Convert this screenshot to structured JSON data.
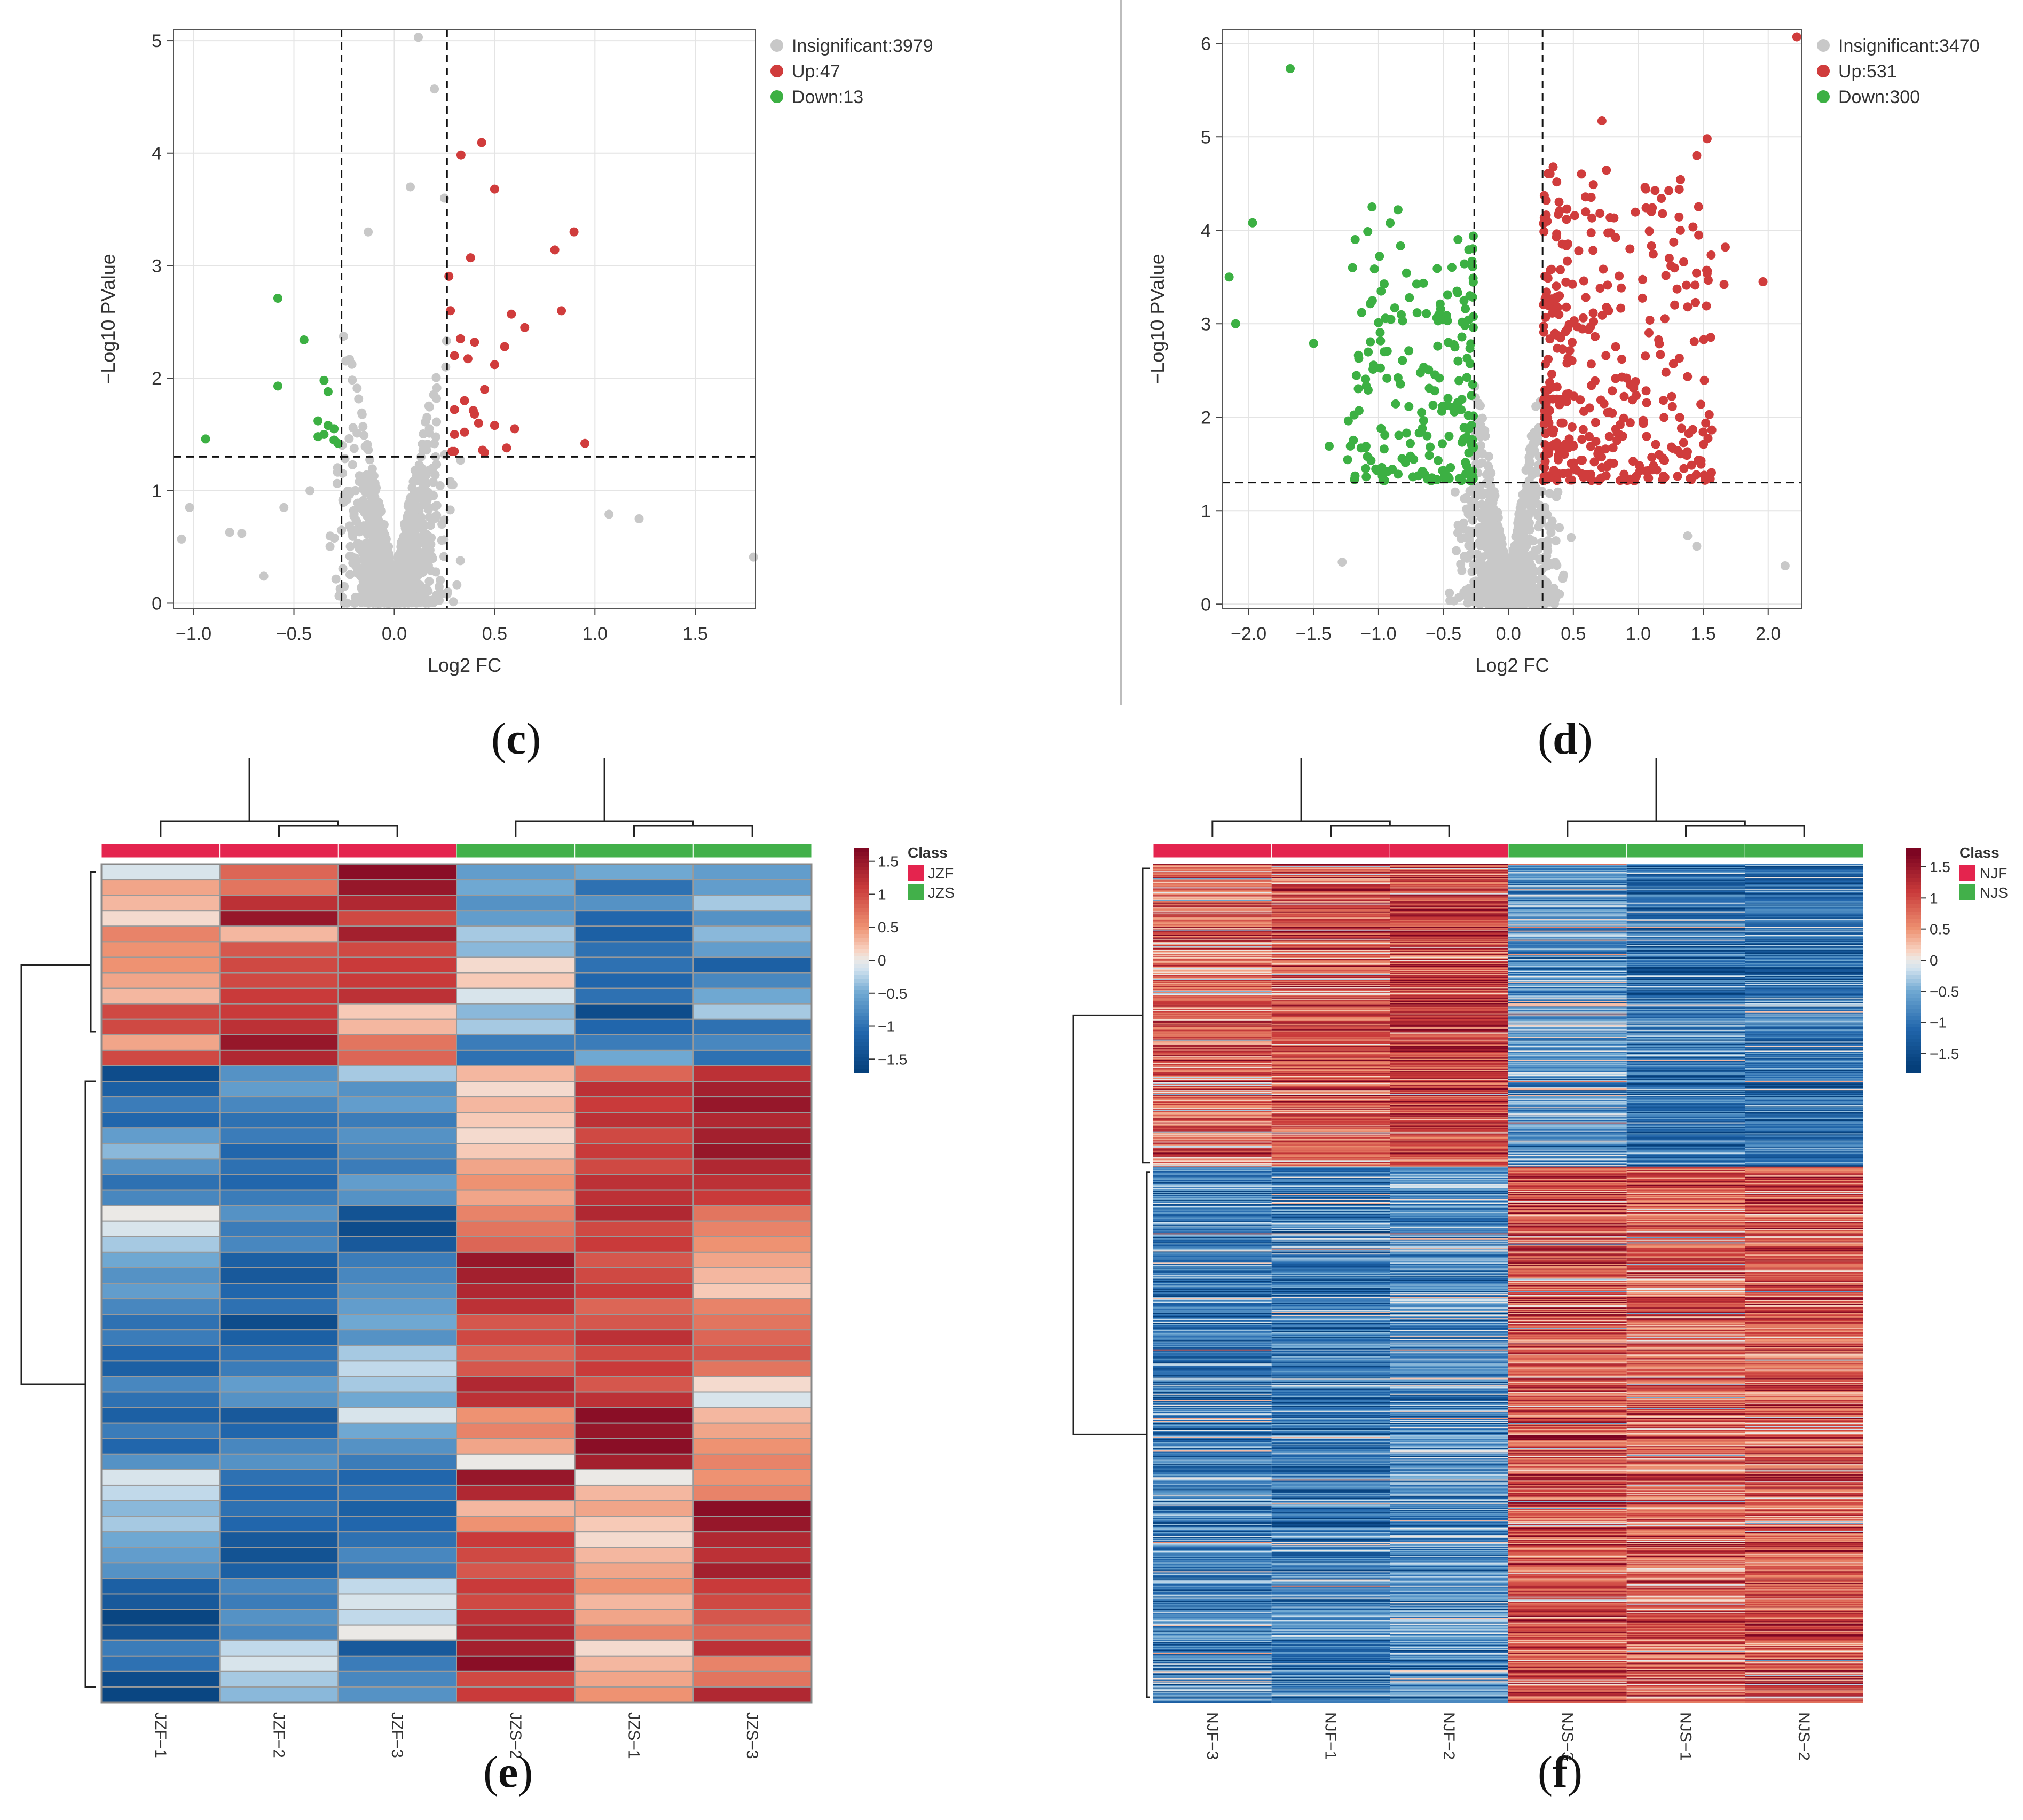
{
  "labels": {
    "c": "c",
    "d": "d",
    "e": "e",
    "f": "f",
    "open": "(",
    "close": ")"
  },
  "colors": {
    "insig": "#c8c8c8",
    "up": "#d03c3c",
    "down": "#3cb043",
    "jzf": "#e4244e",
    "jzs": "#42b04a",
    "heat_low": "#053f7a",
    "heat_mid": "#ebe9e6",
    "heat_high": "#7d0522"
  },
  "chart_data": [
    {
      "id": "volcano-c",
      "type": "scatter",
      "title": "",
      "xlabel": "Log2  FC",
      "ylabel": "−Log10  PValue",
      "xlim": [
        -1.1,
        1.8
      ],
      "ylim": [
        -0.05,
        5.1
      ],
      "xticks": [
        -1.0,
        -0.5,
        0.0,
        0.5,
        1.0,
        1.5
      ],
      "xtick_labels": [
        "−1.0",
        "−0.5",
        "0.0",
        "0.5",
        "1.0",
        "1.5"
      ],
      "yticks": [
        0,
        1,
        2,
        3,
        4,
        5
      ],
      "ytick_labels": [
        "0",
        "1",
        "2",
        "3",
        "4",
        "5"
      ],
      "thresholds": {
        "x": [
          -0.263,
          0.263
        ],
        "y": 1.301
      },
      "legend": {
        "position": "top-right",
        "items": [
          {
            "label": "Insignificant:3979",
            "key": "insig"
          },
          {
            "label": "Up:47",
            "key": "up"
          },
          {
            "label": "Down:13",
            "key": "down"
          }
        ]
      },
      "counts": {
        "insignificant": 3979,
        "up": 47,
        "down": 13
      },
      "x_spread": 0.11,
      "x_range_sig": 0.7,
      "seed": 17,
      "points": {
        "up": [
          [
            0.5,
            3.68
          ],
          [
            0.8,
            3.14
          ],
          [
            0.38,
            3.07
          ],
          [
            0.28,
            2.6
          ],
          [
            0.65,
            2.45
          ],
          [
            0.55,
            2.28
          ],
          [
            0.4,
            2.32
          ],
          [
            0.33,
            2.35
          ],
          [
            0.3,
            2.2
          ],
          [
            0.5,
            2.12
          ],
          [
            0.45,
            1.9
          ],
          [
            0.35,
            1.8
          ],
          [
            0.3,
            1.72
          ],
          [
            0.4,
            1.68
          ],
          [
            0.6,
            1.55
          ],
          [
            0.95,
            1.42
          ],
          [
            0.5,
            1.58
          ],
          [
            0.42,
            1.6
          ],
          [
            0.35,
            1.52
          ],
          [
            0.3,
            1.5
          ],
          [
            0.56,
            1.38
          ],
          [
            0.44,
            1.36
          ]
        ],
        "down": [
          [
            -0.58,
            2.71
          ],
          [
            -0.45,
            2.34
          ],
          [
            -0.35,
            1.98
          ],
          [
            -0.58,
            1.93
          ],
          [
            -0.33,
            1.88
          ],
          [
            -0.94,
            1.46
          ],
          [
            -0.38,
            1.62
          ],
          [
            -0.33,
            1.58
          ],
          [
            -0.3,
            1.55
          ],
          [
            -0.35,
            1.5
          ],
          [
            -0.3,
            1.45
          ],
          [
            -0.38,
            1.48
          ],
          [
            -0.28,
            1.42
          ]
        ],
        "outliers": [
          [
            0.12,
            5.03
          ],
          [
            0.2,
            4.57
          ],
          [
            0.08,
            3.7
          ],
          [
            0.25,
            3.6
          ],
          [
            -0.13,
            3.3
          ],
          [
            1.79,
            0.41
          ],
          [
            1.22,
            0.75
          ],
          [
            1.07,
            0.79
          ],
          [
            -0.42,
            1.0
          ],
          [
            -0.55,
            0.85
          ],
          [
            -0.82,
            0.63
          ],
          [
            -0.76,
            0.62
          ],
          [
            -0.65,
            0.24
          ],
          [
            -1.06,
            0.57
          ],
          [
            -1.02,
            0.85
          ]
        ]
      }
    },
    {
      "id": "volcano-d",
      "type": "scatter",
      "title": "",
      "xlabel": "Log2  FC",
      "ylabel": "−Log10  PValue",
      "xlim": [
        -2.2,
        2.26
      ],
      "ylim": [
        -0.05,
        6.15
      ],
      "xticks": [
        -2.0,
        -1.5,
        -1.0,
        -0.5,
        0.0,
        0.5,
        1.0,
        1.5,
        2.0
      ],
      "xtick_labels": [
        "−2.0",
        "−1.5",
        "−1.0",
        "−0.5",
        "0.0",
        "0.5",
        "1.0",
        "1.5",
        "2.0"
      ],
      "yticks": [
        0,
        1,
        2,
        3,
        4,
        5,
        6
      ],
      "ytick_labels": [
        "0",
        "1",
        "2",
        "3",
        "4",
        "5",
        "6"
      ],
      "thresholds": {
        "x": [
          -0.263,
          0.263
        ],
        "y": 1.301
      },
      "legend": {
        "position": "top-right",
        "items": [
          {
            "label": "Insignificant:3470",
            "key": "insig"
          },
          {
            "label": "Up:531",
            "key": "up"
          },
          {
            "label": "Down:300",
            "key": "down"
          }
        ]
      },
      "counts": {
        "insignificant": 3470,
        "up": 531,
        "down": 300
      },
      "x_spread": 0.15,
      "x_range_sig": 1.3,
      "seed": 29,
      "points": {
        "up": [
          [
            2.22,
            6.07
          ],
          [
            1.53,
            4.98
          ],
          [
            1.45,
            4.8
          ],
          [
            1.67,
            3.82
          ],
          [
            1.96,
            3.45
          ],
          [
            1.66,
            3.42
          ],
          [
            0.72,
            5.17
          ],
          [
            1.1,
            4.2
          ],
          [
            1.38,
            3.18
          ],
          [
            1.28,
            3.2
          ],
          [
            1.17,
            2.67
          ],
          [
            1.16,
            1.6
          ]
        ],
        "down": [
          [
            -1.68,
            5.73
          ],
          [
            -1.97,
            4.08
          ],
          [
            -2.15,
            3.5
          ],
          [
            -2.1,
            3.0
          ],
          [
            -1.5,
            2.79
          ],
          [
            -1.2,
            3.6
          ],
          [
            -1.13,
            3.12
          ],
          [
            -1.08,
            2.29
          ],
          [
            -1.15,
            2.07
          ],
          [
            -1.38,
            1.69
          ],
          [
            -1.05,
            4.25
          ],
          [
            -0.85,
            4.22
          ]
        ],
        "outliers": [
          [
            2.13,
            0.41
          ],
          [
            1.38,
            0.73
          ],
          [
            1.45,
            0.62
          ],
          [
            -1.28,
            0.45
          ]
        ]
      }
    },
    {
      "id": "heatmap-e",
      "type": "heatmap",
      "title": "",
      "columns": [
        "JZF−1",
        "JZF−2",
        "JZF−3",
        "JZS−2",
        "JZS−1",
        "JZS−3"
      ],
      "col_classes": [
        "JZF",
        "JZF",
        "JZF",
        "JZS",
        "JZS",
        "JZS"
      ],
      "legend_title": "Class",
      "legend": [
        "JZF",
        "JZS"
      ],
      "colorbar": {
        "ticks": [
          1.5,
          1,
          0.5,
          0,
          -0.5,
          -1,
          -1.5
        ],
        "tick_labels": [
          "1.5",
          "1",
          "0.5",
          "0",
          "−0.5",
          "−1",
          "−1.5"
        ],
        "range": [
          -1.7,
          1.7
        ]
      },
      "split_row": 13,
      "values": [
        [
          -0.1,
          0.8,
          1.6,
          -0.6,
          -0.5,
          -0.6
        ],
        [
          0.4,
          0.7,
          1.5,
          -0.5,
          -1.0,
          -0.6
        ],
        [
          0.3,
          1.2,
          1.3,
          -0.7,
          -0.7,
          -0.3
        ],
        [
          0.1,
          1.5,
          1.0,
          -0.6,
          -1.1,
          -0.7
        ],
        [
          0.6,
          0.3,
          1.4,
          -0.3,
          -1.2,
          -0.4
        ],
        [
          0.5,
          0.9,
          1.0,
          -0.4,
          -1.0,
          -0.6
        ],
        [
          0.5,
          1.0,
          1.1,
          0.1,
          -1.0,
          -1.2
        ],
        [
          0.4,
          1.0,
          1.1,
          0.2,
          -1.1,
          -0.8
        ],
        [
          0.3,
          1.1,
          1.2,
          -0.1,
          -1.0,
          -0.5
        ],
        [
          1.0,
          1.1,
          0.2,
          -0.4,
          -1.5,
          -0.3
        ],
        [
          1.0,
          1.2,
          0.3,
          -0.3,
          -1.1,
          -1.0
        ],
        [
          0.4,
          1.5,
          0.7,
          -0.9,
          -0.9,
          -0.8
        ],
        [
          1.0,
          1.3,
          0.8,
          -1.0,
          -0.5,
          -1.0
        ],
        [
          -1.5,
          -0.7,
          -0.3,
          0.3,
          0.8,
          1.2
        ],
        [
          -1.2,
          -0.6,
          -0.7,
          0.1,
          1.2,
          1.4
        ],
        [
          -0.9,
          -0.8,
          -0.6,
          0.3,
          1.1,
          1.5
        ],
        [
          -1.1,
          -1.0,
          -0.9,
          0.2,
          1.2,
          1.3
        ],
        [
          -0.6,
          -0.9,
          -0.7,
          0.1,
          1.0,
          1.4
        ],
        [
          -0.4,
          -1.1,
          -0.8,
          0.2,
          1.1,
          1.5
        ],
        [
          -0.7,
          -1.0,
          -0.9,
          0.4,
          1.0,
          1.3
        ],
        [
          -1.0,
          -1.1,
          -0.6,
          0.5,
          1.2,
          1.2
        ],
        [
          -0.8,
          -0.9,
          -0.7,
          0.4,
          1.2,
          1.1
        ],
        [
          0.0,
          -0.7,
          -1.4,
          0.6,
          1.3,
          0.7
        ],
        [
          -0.1,
          -0.9,
          -1.5,
          0.7,
          1.0,
          0.6
        ],
        [
          -0.3,
          -0.8,
          -1.3,
          0.8,
          1.1,
          0.5
        ],
        [
          -0.5,
          -1.2,
          -0.9,
          1.5,
          0.9,
          0.4
        ],
        [
          -0.7,
          -1.3,
          -0.8,
          1.4,
          1.0,
          0.3
        ],
        [
          -0.6,
          -1.1,
          -0.7,
          1.3,
          1.1,
          0.2
        ],
        [
          -0.8,
          -1.0,
          -0.6,
          1.2,
          0.8,
          0.6
        ],
        [
          -1.0,
          -1.5,
          -0.5,
          0.9,
          0.9,
          0.7
        ],
        [
          -0.9,
          -1.2,
          -0.7,
          1.0,
          1.2,
          0.8
        ],
        [
          -1.1,
          -1.0,
          -0.3,
          0.8,
          1.0,
          0.9
        ],
        [
          -1.2,
          -0.9,
          -0.2,
          0.9,
          1.1,
          0.7
        ],
        [
          -0.8,
          -0.6,
          -0.3,
          1.3,
          0.9,
          0.1
        ],
        [
          -1.0,
          -0.7,
          -0.5,
          1.2,
          1.2,
          -0.1
        ],
        [
          -1.2,
          -1.3,
          -0.1,
          0.5,
          1.6,
          0.3
        ],
        [
          -0.9,
          -1.1,
          -0.5,
          0.6,
          1.5,
          0.4
        ],
        [
          -1.1,
          -0.8,
          -0.7,
          0.4,
          1.6,
          0.5
        ],
        [
          -0.7,
          -0.7,
          -0.9,
          0.0,
          1.4,
          0.6
        ],
        [
          -0.1,
          -1.0,
          -1.1,
          1.5,
          0.0,
          0.5
        ],
        [
          -0.2,
          -1.1,
          -1.0,
          1.3,
          0.3,
          0.6
        ],
        [
          -0.4,
          -1.0,
          -1.2,
          0.3,
          0.4,
          1.6
        ],
        [
          -0.3,
          -1.1,
          -1.1,
          0.5,
          0.2,
          1.5
        ],
        [
          -0.5,
          -1.3,
          -1.0,
          1.1,
          0.1,
          1.3
        ],
        [
          -0.6,
          -1.4,
          -0.8,
          1.0,
          0.3,
          1.2
        ],
        [
          -0.7,
          -1.2,
          -0.9,
          0.9,
          0.4,
          1.4
        ],
        [
          -1.2,
          -0.8,
          -0.2,
          1.1,
          0.5,
          1.1
        ],
        [
          -1.3,
          -0.9,
          -0.1,
          1.0,
          0.3,
          1.0
        ],
        [
          -1.6,
          -0.7,
          -0.2,
          1.2,
          0.4,
          0.9
        ],
        [
          -1.4,
          -0.8,
          0.0,
          1.3,
          0.6,
          0.8
        ],
        [
          -0.9,
          -0.2,
          -1.3,
          1.4,
          0.1,
          1.2
        ],
        [
          -1.0,
          -0.1,
          -0.9,
          1.6,
          0.3,
          0.6
        ],
        [
          -1.5,
          -0.3,
          -0.8,
          1.0,
          0.4,
          0.7
        ],
        [
          -1.6,
          -0.4,
          -0.7,
          1.1,
          0.5,
          1.3
        ]
      ]
    },
    {
      "id": "heatmap-f",
      "type": "heatmap",
      "title": "",
      "columns": [
        "NJF−3",
        "NJF−1",
        "NJF−2",
        "NJS−3",
        "NJS−1",
        "NJS−2"
      ],
      "col_classes": [
        "NJF",
        "NJF",
        "NJF",
        "NJS",
        "NJS",
        "NJS"
      ],
      "legend_title": "Class",
      "legend": [
        "NJF",
        "NJS"
      ],
      "colorbar": {
        "ticks": [
          1.5,
          1,
          0.5,
          0,
          -0.5,
          -1,
          -1.5
        ],
        "tick_labels": [
          "1.5",
          "1",
          "0.5",
          "0",
          "−0.5",
          "−1",
          "−1.5"
        ],
        "range": [
          -1.8,
          1.8
        ]
      },
      "rows": 831,
      "split_row": 300,
      "column_means": {
        "top": [
          0.7,
          0.9,
          1.1,
          -0.6,
          -1.0,
          -1.0
        ],
        "bottom": [
          -0.8,
          -0.9,
          -0.7,
          0.9,
          0.8,
          0.9
        ]
      },
      "seed": 7
    }
  ]
}
